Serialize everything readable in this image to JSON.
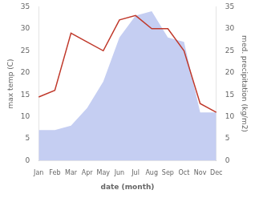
{
  "chart_data": {
    "type": "line",
    "categories": [
      "Jan",
      "Feb",
      "Mar",
      "Apr",
      "May",
      "Jun",
      "Jul",
      "Aug",
      "Sep",
      "Oct",
      "Nov",
      "Dec"
    ],
    "series": [
      {
        "type": "area",
        "axis": "y2",
        "color": "#c5cef2",
        "values": [
          7,
          7,
          8,
          12,
          18,
          28,
          33,
          34,
          28,
          27,
          11,
          11
        ]
      },
      {
        "type": "line",
        "color": "#c0392b",
        "values": [
          14.5,
          16,
          29,
          27,
          25,
          32,
          33,
          30,
          30,
          25,
          13,
          11
        ]
      }
    ],
    "xlabel": "date (month)",
    "ylabel": "max temp (C)",
    "y2label": "med. precipitation (kg/m2)",
    "ylim": [
      0,
      35
    ],
    "yticks": [
      0,
      5,
      10,
      15,
      20,
      25,
      30,
      35
    ],
    "y2lim": [
      0,
      35
    ],
    "y2ticks": [
      0,
      5,
      10,
      15,
      20,
      25,
      30,
      35
    ],
    "grid": false
  }
}
